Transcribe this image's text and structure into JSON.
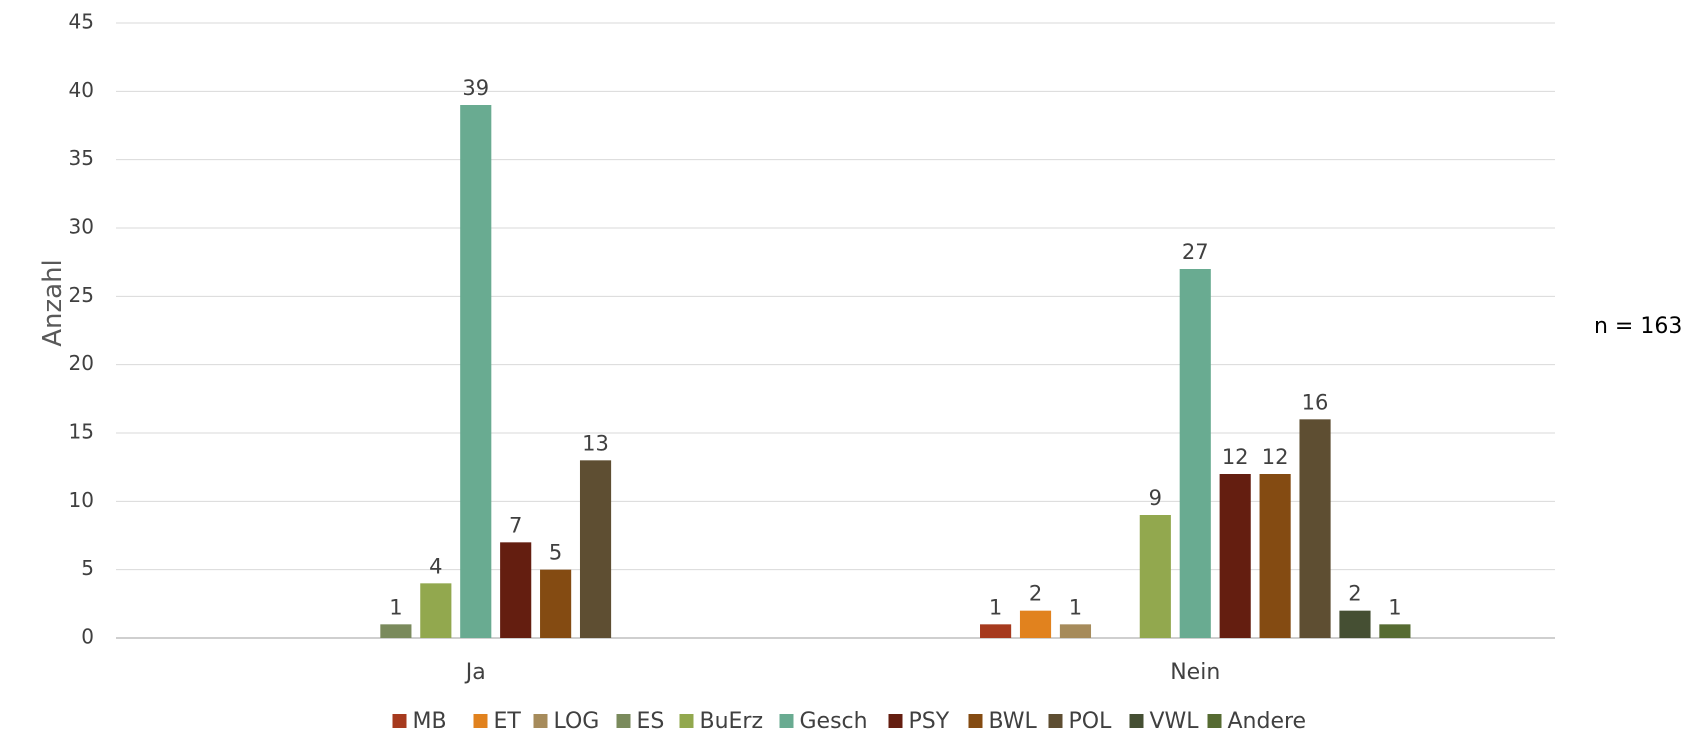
{
  "chart_data": {
    "type": "bar",
    "ylabel": "Anzahl",
    "ylim": [
      0,
      45
    ],
    "yticks": [
      0,
      5,
      10,
      15,
      20,
      25,
      30,
      35,
      40,
      45
    ],
    "grid": true,
    "legend_position": "bottom",
    "note": "n = 163",
    "categories": [
      "Ja",
      "Nein"
    ],
    "series": [
      {
        "name": "MB",
        "color": "#A63A1E",
        "values": [
          null,
          1
        ]
      },
      {
        "name": "ET",
        "color": "#E1821E",
        "values": [
          null,
          2
        ]
      },
      {
        "name": "LOG",
        "color": "#A68B5B",
        "values": [
          null,
          1
        ]
      },
      {
        "name": "ES",
        "color": "#7A8A5C",
        "values": [
          1,
          null
        ]
      },
      {
        "name": "BuErz",
        "color": "#92A84E",
        "values": [
          4,
          9
        ]
      },
      {
        "name": "Gesch",
        "color": "#69AB91",
        "values": [
          39,
          27
        ]
      },
      {
        "name": "PSY",
        "color": "#641E10",
        "values": [
          7,
          12
        ]
      },
      {
        "name": "BWL",
        "color": "#844B12",
        "values": [
          5,
          12
        ]
      },
      {
        "name": "POL",
        "color": "#5E4E32",
        "values": [
          13,
          16
        ]
      },
      {
        "name": "VWL",
        "color": "#454F33",
        "values": [
          null,
          2
        ]
      },
      {
        "name": "Andere",
        "color": "#566B32",
        "values": [
          null,
          1
        ]
      }
    ]
  }
}
